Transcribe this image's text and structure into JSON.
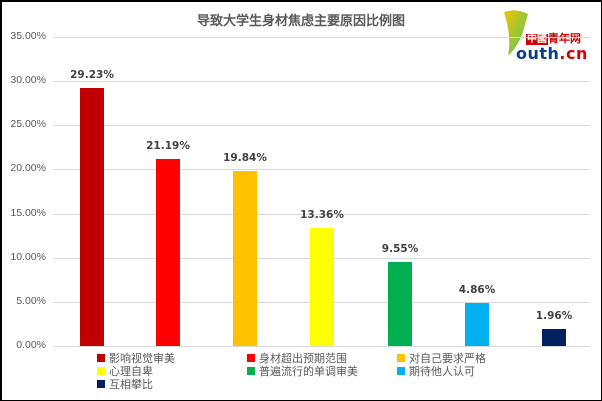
{
  "chart_data": {
    "type": "bar",
    "title": "导致大学生身材焦虑主要原因比例图",
    "xlabel": "",
    "ylabel": "",
    "ylim": [
      0,
      35
    ],
    "y_ticks": [
      "0.00%",
      "5.00%",
      "10.00%",
      "15.00%",
      "20.00%",
      "25.00%",
      "30.00%",
      "35.00%"
    ],
    "grid": true,
    "legend_position": "bottom",
    "categories": [
      "影响视觉审美",
      "身材超出预期范围",
      "对自己要求严格",
      "心理自卑",
      "普遍流行的单调审美",
      "期待他人认可",
      "互相攀比"
    ],
    "values": [
      29.23,
      21.19,
      19.84,
      13.36,
      9.55,
      4.86,
      1.96
    ],
    "value_labels": [
      "29.23%",
      "21.19%",
      "19.84%",
      "13.36%",
      "9.55%",
      "4.86%",
      "1.96%"
    ],
    "colors": [
      "#c00000",
      "#ff0000",
      "#ffc000",
      "#ffff00",
      "#00b050",
      "#00b0f0",
      "#002060"
    ]
  },
  "logo": {
    "badge": "中國",
    "site_cn": "青年网",
    "brand": "outh",
    "tld": ".cn"
  }
}
